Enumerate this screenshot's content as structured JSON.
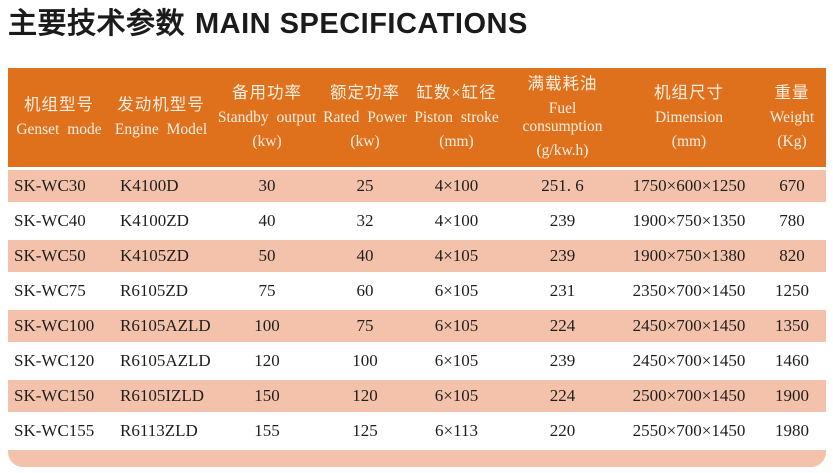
{
  "title": {
    "zh": "主要技术参数",
    "en": "MAIN SPECIFICATIONS"
  },
  "colors": {
    "header_bg": "#E0711C",
    "header_text": "#FBEFE3",
    "row_alt_bg": "#F4C2AB",
    "body_text": "#1E1E1E"
  },
  "table": {
    "columns": [
      {
        "zh": "机组型号",
        "en": "Genset mode",
        "unit": ""
      },
      {
        "zh": "发动机型号",
        "en": "Engine Model",
        "unit": ""
      },
      {
        "zh": "备用功率",
        "en": "Standby output",
        "unit": "(kw)"
      },
      {
        "zh": "额定功率",
        "en": "Rated Power",
        "unit": "(kw)"
      },
      {
        "zh": "缸数×缸径",
        "en": "Piston stroke",
        "unit": "(mm)"
      },
      {
        "zh": "满载耗油",
        "en": "Fuel consumption",
        "unit": "(g/kw.h)"
      },
      {
        "zh": "机组尺寸",
        "en": "Dimension",
        "unit": "(mm)"
      },
      {
        "zh": "重量",
        "en": "Weight",
        "unit": "(Kg)"
      }
    ],
    "rows": [
      [
        "SK-WC30",
        "K4100D",
        "30",
        "25",
        "4×100",
        "251. 6",
        "1750×600×1250",
        "670"
      ],
      [
        "SK-WC40",
        "K4100ZD",
        "40",
        "32",
        "4×100",
        "239",
        "1900×750×1350",
        "780"
      ],
      [
        "SK-WC50",
        "K4105ZD",
        "50",
        "40",
        "4×105",
        "239",
        "1900×750×1380",
        "820"
      ],
      [
        "SK-WC75",
        "R6105ZD",
        "75",
        "60",
        "6×105",
        "231",
        "2350×700×1450",
        "1250"
      ],
      [
        "SK-WC100",
        "R6105AZLD",
        "100",
        "75",
        "6×105",
        "224",
        "2450×700×1450",
        "1350"
      ],
      [
        "SK-WC120",
        "R6105AZLD",
        "120",
        "100",
        "6×105",
        "239",
        "2450×700×1450",
        "1460"
      ],
      [
        "SK-WC150",
        "R6105IZLD",
        "150",
        "120",
        "6×105",
        "224",
        "2500×700×1450",
        "1900"
      ],
      [
        "SK-WC155",
        "R6113ZLD",
        "155",
        "125",
        "6×113",
        "220",
        "2550×700×1450",
        "1980"
      ]
    ]
  }
}
